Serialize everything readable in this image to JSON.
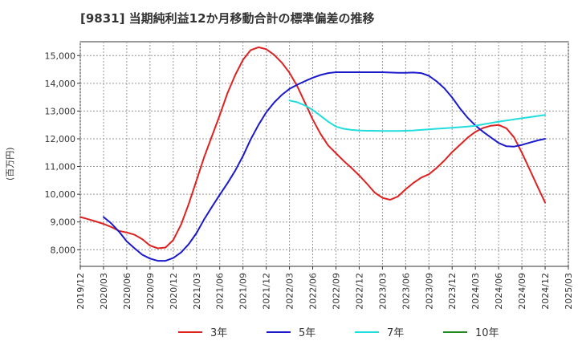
{
  "chart_data": {
    "type": "line",
    "title": "[9831]  当期純利益12か月移動合計の標準偏差の推移",
    "ylabel": "(百万円)",
    "xlim": [
      "2019-12",
      "2025-03"
    ],
    "ylim": [
      7400,
      15500
    ],
    "y_ticks": [
      8000,
      9000,
      10000,
      11000,
      12000,
      13000,
      14000,
      15000
    ],
    "y_tick_labels": [
      "8,000",
      "9,000",
      "10,000",
      "11,000",
      "12,000",
      "13,000",
      "14,000",
      "15,000"
    ],
    "x_ticks": [
      "2019-12",
      "2020-03",
      "2020-06",
      "2020-09",
      "2020-12",
      "2021-03",
      "2021-06",
      "2021-09",
      "2021-12",
      "2022-03",
      "2022-06",
      "2022-09",
      "2022-12",
      "2023-03",
      "2023-06",
      "2023-09",
      "2023-12",
      "2024-03",
      "2024-06",
      "2024-09",
      "2024-12",
      "2025-03"
    ],
    "x_tick_labels": [
      "2019/12",
      "2020/03",
      "2020/06",
      "2020/09",
      "2020/12",
      "2021/03",
      "2021/06",
      "2021/09",
      "2021/12",
      "2022/03",
      "2022/06",
      "2022/09",
      "2022/12",
      "2023/03",
      "2023/06",
      "2023/09",
      "2023/12",
      "2024/03",
      "2024/06",
      "2024/09",
      "2024/12",
      "2025/03"
    ],
    "grid": true,
    "legend_position": "bottom",
    "series": [
      {
        "name": "3年",
        "color": "#dd2222",
        "x": [
          "2019-12",
          "2020-01",
          "2020-02",
          "2020-03",
          "2020-04",
          "2020-05",
          "2020-06",
          "2020-07",
          "2020-08",
          "2020-09",
          "2020-10",
          "2020-11",
          "2020-12",
          "2021-01",
          "2021-02",
          "2021-03",
          "2021-04",
          "2021-05",
          "2021-06",
          "2021-07",
          "2021-08",
          "2021-09",
          "2021-10",
          "2021-11",
          "2021-12",
          "2022-01",
          "2022-02",
          "2022-03",
          "2022-04",
          "2022-05",
          "2022-06",
          "2022-07",
          "2022-08",
          "2022-09",
          "2022-10",
          "2022-11",
          "2022-12",
          "2023-01",
          "2023-02",
          "2023-03",
          "2023-04",
          "2023-05",
          "2023-06",
          "2023-07",
          "2023-08",
          "2023-09",
          "2023-10",
          "2023-11",
          "2023-12",
          "2024-01",
          "2024-02",
          "2024-03",
          "2024-04",
          "2024-05",
          "2024-06",
          "2024-07",
          "2024-08",
          "2024-09",
          "2024-10",
          "2024-11",
          "2024-12"
        ],
        "values": [
          9180,
          9100,
          9020,
          8930,
          8820,
          8680,
          8620,
          8540,
          8380,
          8150,
          8050,
          8080,
          8350,
          8900,
          9650,
          10500,
          11350,
          12100,
          12850,
          13650,
          14300,
          14850,
          15200,
          15300,
          15230,
          15030,
          14750,
          14380,
          13900,
          13300,
          12700,
          12180,
          11760,
          11480,
          11200,
          10950,
          10680,
          10380,
          10060,
          9870,
          9800,
          9920,
          10180,
          10410,
          10600,
          10720,
          10950,
          11220,
          11520,
          11780,
          12040,
          12250,
          12390,
          12470,
          12500,
          12380,
          12050,
          11500,
          10900,
          10290,
          9700
        ]
      },
      {
        "name": "5年",
        "color": "#1a1acc",
        "x": [
          "2020-03",
          "2020-04",
          "2020-05",
          "2020-06",
          "2020-07",
          "2020-08",
          "2020-09",
          "2020-10",
          "2020-11",
          "2020-12",
          "2021-01",
          "2021-02",
          "2021-03",
          "2021-04",
          "2021-05",
          "2021-06",
          "2021-07",
          "2021-08",
          "2021-09",
          "2021-10",
          "2021-11",
          "2021-12",
          "2022-01",
          "2022-02",
          "2022-03",
          "2022-04",
          "2022-05",
          "2022-06",
          "2022-07",
          "2022-08",
          "2022-09",
          "2022-10",
          "2022-11",
          "2022-12",
          "2023-01",
          "2023-02",
          "2023-03",
          "2023-04",
          "2023-05",
          "2023-06",
          "2023-07",
          "2023-08",
          "2023-09",
          "2023-10",
          "2023-11",
          "2023-12",
          "2024-01",
          "2024-02",
          "2024-03",
          "2024-04",
          "2024-05",
          "2024-06",
          "2024-07",
          "2024-08",
          "2024-09",
          "2024-10",
          "2024-11",
          "2024-12"
        ],
        "values": [
          9180,
          8950,
          8650,
          8300,
          8050,
          7820,
          7680,
          7600,
          7600,
          7700,
          7900,
          8200,
          8600,
          9100,
          9550,
          9980,
          10400,
          10850,
          11380,
          11980,
          12500,
          12950,
          13300,
          13580,
          13800,
          13950,
          14080,
          14200,
          14300,
          14370,
          14400,
          14400,
          14400,
          14400,
          14400,
          14400,
          14400,
          14390,
          14380,
          14380,
          14390,
          14370,
          14270,
          14070,
          13820,
          13490,
          13100,
          12760,
          12480,
          12250,
          12050,
          11850,
          11730,
          11720,
          11780,
          11860,
          11940,
          12000
        ]
      },
      {
        "name": "7年",
        "color": "#22dddd",
        "x": [
          "2022-03",
          "2022-04",
          "2022-05",
          "2022-06",
          "2022-07",
          "2022-08",
          "2022-09",
          "2022-10",
          "2022-11",
          "2022-12",
          "2023-01",
          "2023-02",
          "2023-03",
          "2023-04",
          "2023-05",
          "2023-06",
          "2023-07",
          "2023-08",
          "2023-09",
          "2023-10",
          "2023-11",
          "2023-12",
          "2024-01",
          "2024-02",
          "2024-03",
          "2024-04",
          "2024-05",
          "2024-06",
          "2024-07",
          "2024-08",
          "2024-09",
          "2024-10",
          "2024-11",
          "2024-12"
        ],
        "values": [
          13380,
          13320,
          13200,
          13040,
          12830,
          12620,
          12440,
          12360,
          12320,
          12300,
          12290,
          12290,
          12280,
          12280,
          12280,
          12290,
          12300,
          12320,
          12340,
          12360,
          12380,
          12400,
          12420,
          12440,
          12470,
          12520,
          12570,
          12620,
          12660,
          12700,
          12740,
          12780,
          12820,
          12860
        ]
      },
      {
        "name": "10年",
        "color": "#228822",
        "x": [],
        "values": []
      }
    ]
  }
}
